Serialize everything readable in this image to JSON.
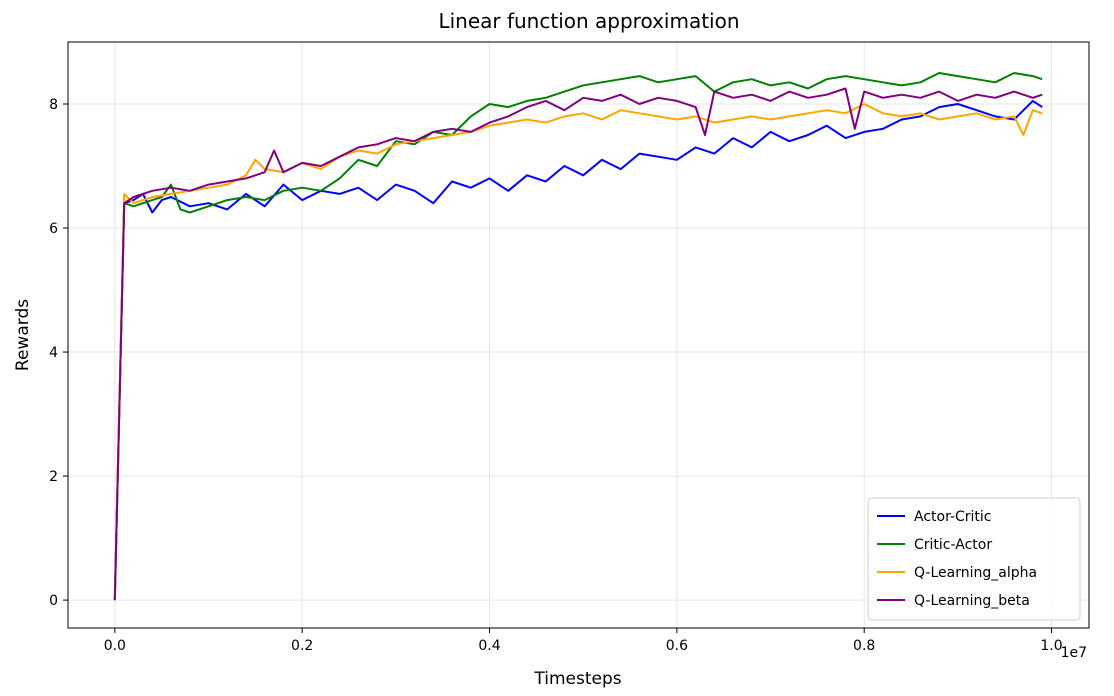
{
  "chart_data": {
    "type": "line",
    "title": "Linear function approximation",
    "xlabel": "Timesteps",
    "ylabel": "Rewards",
    "x_offset_label": "1e7",
    "xlim": [
      -0.05,
      1.04
    ],
    "ylim": [
      -0.45,
      9.0
    ],
    "x_ticks": [
      0.0,
      0.2,
      0.4,
      0.6,
      0.8,
      1.0
    ],
    "x_tick_labels": [
      "0.0",
      "0.2",
      "0.4",
      "0.6",
      "0.8",
      "1.0"
    ],
    "y_ticks": [
      0,
      2,
      4,
      6,
      8
    ],
    "y_tick_labels": [
      "0",
      "2",
      "4",
      "6",
      "8"
    ],
    "grid": true,
    "legend_position": "bottom-right",
    "series": [
      {
        "name": "Actor-Critic",
        "color": "#0000ff",
        "x": [
          0.0,
          0.01,
          0.02,
          0.03,
          0.04,
          0.05,
          0.06,
          0.08,
          0.1,
          0.12,
          0.14,
          0.16,
          0.18,
          0.2,
          0.22,
          0.24,
          0.26,
          0.28,
          0.3,
          0.32,
          0.34,
          0.36,
          0.38,
          0.4,
          0.42,
          0.44,
          0.46,
          0.48,
          0.5,
          0.52,
          0.54,
          0.56,
          0.58,
          0.6,
          0.62,
          0.64,
          0.66,
          0.68,
          0.7,
          0.72,
          0.74,
          0.76,
          0.78,
          0.8,
          0.82,
          0.84,
          0.86,
          0.88,
          0.9,
          0.92,
          0.94,
          0.96,
          0.98,
          0.99
        ],
        "y": [
          0.0,
          6.4,
          6.45,
          6.55,
          6.25,
          6.45,
          6.5,
          6.35,
          6.4,
          6.3,
          6.55,
          6.35,
          6.7,
          6.45,
          6.6,
          6.55,
          6.65,
          6.45,
          6.7,
          6.6,
          6.4,
          6.75,
          6.65,
          6.8,
          6.6,
          6.85,
          6.75,
          7.0,
          6.85,
          7.1,
          6.95,
          7.2,
          7.15,
          7.1,
          7.3,
          7.2,
          7.45,
          7.3,
          7.55,
          7.4,
          7.5,
          7.65,
          7.45,
          7.55,
          7.6,
          7.75,
          7.8,
          7.95,
          8.0,
          7.9,
          7.8,
          7.75,
          8.05,
          7.95
        ]
      },
      {
        "name": "Critic-Actor",
        "color": "#008000",
        "x": [
          0.0,
          0.01,
          0.02,
          0.03,
          0.04,
          0.05,
          0.06,
          0.07,
          0.08,
          0.1,
          0.12,
          0.14,
          0.16,
          0.18,
          0.2,
          0.22,
          0.24,
          0.26,
          0.28,
          0.3,
          0.32,
          0.34,
          0.36,
          0.38,
          0.4,
          0.42,
          0.44,
          0.46,
          0.48,
          0.5,
          0.52,
          0.54,
          0.56,
          0.58,
          0.6,
          0.62,
          0.64,
          0.66,
          0.68,
          0.7,
          0.72,
          0.74,
          0.76,
          0.78,
          0.8,
          0.82,
          0.84,
          0.86,
          0.88,
          0.9,
          0.92,
          0.94,
          0.96,
          0.98,
          0.99
        ],
        "y": [
          0.0,
          6.4,
          6.35,
          6.4,
          6.45,
          6.5,
          6.7,
          6.3,
          6.25,
          6.35,
          6.45,
          6.5,
          6.45,
          6.6,
          6.65,
          6.6,
          6.8,
          7.1,
          7.0,
          7.4,
          7.35,
          7.55,
          7.5,
          7.8,
          8.0,
          7.95,
          8.05,
          8.1,
          8.2,
          8.3,
          8.35,
          8.4,
          8.45,
          8.35,
          8.4,
          8.45,
          8.2,
          8.35,
          8.4,
          8.3,
          8.35,
          8.25,
          8.4,
          8.45,
          8.4,
          8.35,
          8.3,
          8.35,
          8.5,
          8.45,
          8.4,
          8.35,
          8.5,
          8.45,
          8.4
        ]
      },
      {
        "name": "Q-Learning_alpha",
        "color": "#ffa500",
        "x": [
          0.0,
          0.01,
          0.02,
          0.04,
          0.06,
          0.08,
          0.1,
          0.12,
          0.14,
          0.15,
          0.16,
          0.18,
          0.2,
          0.22,
          0.24,
          0.26,
          0.28,
          0.3,
          0.32,
          0.34,
          0.36,
          0.38,
          0.4,
          0.42,
          0.44,
          0.46,
          0.48,
          0.5,
          0.52,
          0.54,
          0.56,
          0.58,
          0.6,
          0.62,
          0.64,
          0.66,
          0.68,
          0.7,
          0.72,
          0.74,
          0.76,
          0.78,
          0.8,
          0.82,
          0.84,
          0.86,
          0.88,
          0.9,
          0.92,
          0.94,
          0.96,
          0.97,
          0.98,
          0.99
        ],
        "y": [
          0.0,
          6.55,
          6.4,
          6.5,
          6.55,
          6.6,
          6.65,
          6.7,
          6.85,
          7.1,
          6.95,
          6.9,
          7.05,
          6.95,
          7.15,
          7.25,
          7.2,
          7.35,
          7.4,
          7.45,
          7.5,
          7.55,
          7.65,
          7.7,
          7.75,
          7.7,
          7.8,
          7.85,
          7.75,
          7.9,
          7.85,
          7.8,
          7.75,
          7.8,
          7.7,
          7.75,
          7.8,
          7.75,
          7.8,
          7.85,
          7.9,
          7.85,
          8.0,
          7.85,
          7.8,
          7.85,
          7.75,
          7.8,
          7.85,
          7.75,
          7.8,
          7.5,
          7.9,
          7.85
        ]
      },
      {
        "name": "Q-Learning_beta",
        "color": "#800080",
        "x": [
          0.0,
          0.01,
          0.02,
          0.04,
          0.06,
          0.08,
          0.1,
          0.12,
          0.14,
          0.16,
          0.17,
          0.18,
          0.2,
          0.22,
          0.24,
          0.26,
          0.28,
          0.3,
          0.32,
          0.34,
          0.36,
          0.38,
          0.4,
          0.42,
          0.44,
          0.46,
          0.48,
          0.5,
          0.52,
          0.54,
          0.56,
          0.58,
          0.6,
          0.62,
          0.63,
          0.64,
          0.66,
          0.68,
          0.7,
          0.72,
          0.74,
          0.76,
          0.78,
          0.79,
          0.8,
          0.82,
          0.84,
          0.86,
          0.88,
          0.9,
          0.92,
          0.94,
          0.96,
          0.98,
          0.99
        ],
        "y": [
          0.0,
          6.4,
          6.5,
          6.6,
          6.65,
          6.6,
          6.7,
          6.75,
          6.8,
          6.9,
          7.25,
          6.9,
          7.05,
          7.0,
          7.15,
          7.3,
          7.35,
          7.45,
          7.4,
          7.55,
          7.6,
          7.55,
          7.7,
          7.8,
          7.95,
          8.05,
          7.9,
          8.1,
          8.05,
          8.15,
          8.0,
          8.1,
          8.05,
          7.95,
          7.5,
          8.2,
          8.1,
          8.15,
          8.05,
          8.2,
          8.1,
          8.15,
          8.25,
          7.6,
          8.2,
          8.1,
          8.15,
          8.1,
          8.2,
          8.05,
          8.15,
          8.1,
          8.2,
          8.1,
          8.15
        ]
      }
    ]
  }
}
